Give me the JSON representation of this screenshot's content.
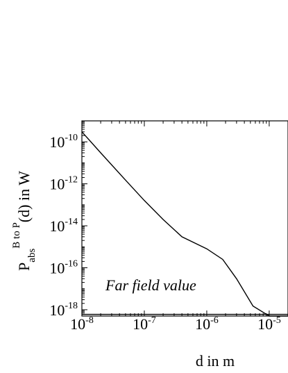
{
  "chart_data": {
    "type": "line",
    "xlabel": "d in m",
    "ylabel": {
      "base": "P",
      "sub": "abs",
      "sup": "B to P",
      "rest": "(d) in W"
    },
    "x_scale": "log",
    "y_scale": "log",
    "xlim": [
      1e-08,
      2e-05
    ],
    "ylim": [
      5e-19,
      1e-09
    ],
    "x_ticks": [
      {
        "value": 1e-08,
        "base": "10",
        "exp": "-8"
      },
      {
        "value": 1e-07,
        "base": "10",
        "exp": "-7"
      },
      {
        "value": 1e-06,
        "base": "10",
        "exp": "-6"
      },
      {
        "value": 1e-05,
        "base": "10",
        "exp": "-5"
      }
    ],
    "y_ticks": [
      {
        "value": 1e-10,
        "base": "10",
        "exp": "-10"
      },
      {
        "value": 1e-12,
        "base": "10",
        "exp": "-12"
      },
      {
        "value": 1e-14,
        "base": "10",
        "exp": "-14"
      },
      {
        "value": 1e-16,
        "base": "10",
        "exp": "-16"
      },
      {
        "value": 1e-18,
        "base": "10",
        "exp": "-18"
      }
    ],
    "series": [
      {
        "x": [
          1e-08,
          2e-08,
          5e-08,
          1e-07,
          2e-07,
          4e-07,
          1e-06,
          1.8e-06,
          3e-06,
          5.5e-06,
          1e-05,
          1.2e-05,
          2e-05
        ],
        "y": [
          3e-10,
          3e-11,
          1.5e-12,
          1.6e-13,
          2e-14,
          3e-15,
          8e-16,
          2.5e-16,
          3e-17,
          1.5e-18,
          5e-19,
          5e-19,
          5e-19
        ]
      },
      {
        "x": [
          1e-08,
          2e-05
        ],
        "y": [
          6e-19,
          6e-19
        ]
      }
    ],
    "annotations": [
      {
        "text": "Far field value"
      }
    ]
  }
}
